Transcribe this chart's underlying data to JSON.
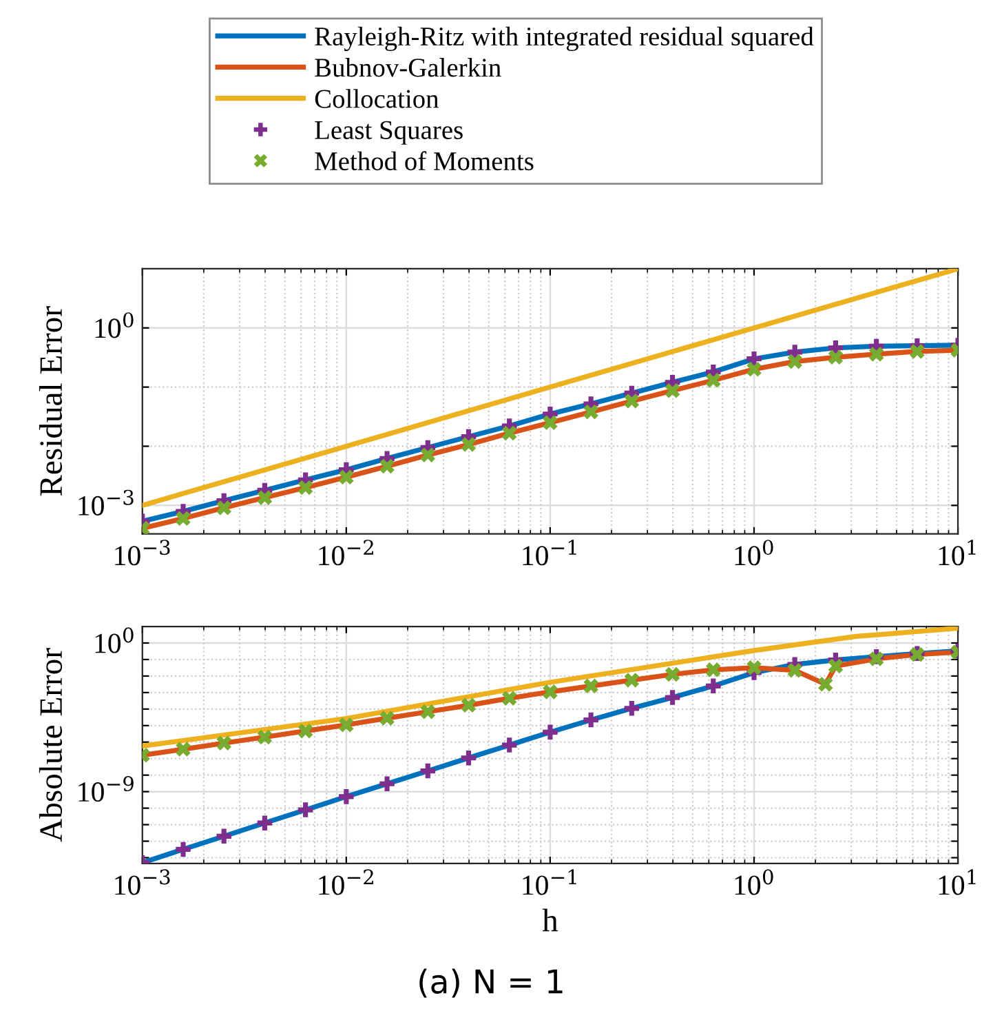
{
  "chart_data": [
    {
      "type": "line",
      "ylabel": "Residual Error",
      "log": "xy",
      "grid": true,
      "legend": "top",
      "xlim": [
        0.001,
        10
      ],
      "xticks": [
        {
          "value": 0.001,
          "label": "10$^{−3}$"
        },
        {
          "value": 0.01,
          "label": "10$^{−2}$"
        },
        {
          "value": 0.1,
          "label": "10$^{−1}$"
        },
        {
          "value": 1,
          "label": "10$^{0}$"
        },
        {
          "value": 10,
          "label": "10$^{1}$"
        }
      ],
      "ylim": [
        0.00033,
        10
      ],
      "yticks": [
        {
          "value": 0.001,
          "label": "10$^{−3}$"
        },
        {
          "value": 0.01,
          "label": null
        },
        {
          "value": 0.1,
          "label": null
        },
        {
          "value": 1,
          "label": "10$^{0}$"
        }
      ],
      "x": [
        0.001,
        0.001585,
        0.002512,
        0.003981,
        0.00631,
        0.01,
        0.01585,
        0.02512,
        0.03981,
        0.0631,
        0.1,
        0.1585,
        0.2512,
        0.3981,
        0.631,
        1,
        1.585,
        2.512,
        3.981,
        6.31,
        10
      ],
      "series": [
        {
          "name": "Rayleigh-Ritz with integrated residual squared",
          "color": "#0072bd",
          "marker": "none",
          "values": [
            0.00054,
            0.00079,
            0.0012,
            0.0018,
            0.0027,
            0.004,
            0.0062,
            0.0095,
            0.0145,
            0.022,
            0.035,
            0.052,
            0.079,
            0.12,
            0.18,
            0.3,
            0.39,
            0.46,
            0.49,
            0.5,
            0.51
          ]
        },
        {
          "name": "Bubnov-Galerkin",
          "color": "#d95319",
          "marker": "none",
          "values": [
            0.00041,
            0.0006,
            0.00091,
            0.00135,
            0.002,
            0.003,
            0.0046,
            0.0071,
            0.0107,
            0.0166,
            0.025,
            0.038,
            0.058,
            0.087,
            0.13,
            0.2,
            0.27,
            0.32,
            0.36,
            0.4,
            0.42
          ]
        },
        {
          "name": "Collocation",
          "color": "#edb120",
          "marker": "none",
          "x": [
            0.001,
            10
          ],
          "values": [
            0.001,
            10
          ]
        },
        {
          "name": "Least Squares",
          "type": "scatter",
          "color": "#7e2f8e",
          "marker": "plus",
          "values": [
            0.00054,
            0.00079,
            0.0012,
            0.0018,
            0.0027,
            0.004,
            0.0062,
            0.0095,
            0.0145,
            0.022,
            0.035,
            0.052,
            0.079,
            0.12,
            0.18,
            0.3,
            0.39,
            0.46,
            0.49,
            0.5,
            0.51
          ]
        },
        {
          "name": "Method of Moments",
          "type": "scatter",
          "color": "#77ac30",
          "marker": "cross",
          "values": [
            0.00041,
            0.0006,
            0.00091,
            0.00135,
            0.002,
            0.003,
            0.0046,
            0.0071,
            0.0107,
            0.0166,
            0.025,
            0.038,
            0.058,
            0.087,
            0.13,
            0.2,
            0.27,
            0.32,
            0.36,
            0.4,
            0.42
          ]
        }
      ]
    },
    {
      "type": "line",
      "ylabel": "Absolute Error",
      "xlabel": "h",
      "log": "xy",
      "grid": true,
      "annotations": [
        "(a) N = 1"
      ],
      "xlim": [
        0.001,
        10
      ],
      "xticks": [
        {
          "value": 0.001,
          "label": "10$^{−3}$"
        },
        {
          "value": 0.01,
          "label": "10$^{−2}$"
        },
        {
          "value": 0.1,
          "label": "10$^{−1}$"
        },
        {
          "value": 1,
          "label": "10$^{0}$"
        },
        {
          "value": 10,
          "label": "10$^{1}$"
        }
      ],
      "ylim": [
        4.5e-14,
        10
      ],
      "yticks": [
        {
          "value": 1e-13,
          "label": null
        },
        {
          "value": 1e-12,
          "label": null
        },
        {
          "value": 1e-11,
          "label": null
        },
        {
          "value": 1e-10,
          "label": null
        },
        {
          "value": 1e-09,
          "label": "10$^{−9}$"
        },
        {
          "value": 1e-08,
          "label": null
        },
        {
          "value": 1e-07,
          "label": null
        },
        {
          "value": 1e-06,
          "label": null
        },
        {
          "value": 1e-05,
          "label": null
        },
        {
          "value": 0.0001,
          "label": null
        },
        {
          "value": 0.001,
          "label": null
        },
        {
          "value": 0.01,
          "label": null
        },
        {
          "value": 0.1,
          "label": null
        },
        {
          "value": 1,
          "label": "10$^{0}$"
        }
      ],
      "x": [
        0.001,
        0.001585,
        0.002512,
        0.003981,
        0.00631,
        0.01,
        0.01585,
        0.02512,
        0.03981,
        0.0631,
        0.1,
        0.1585,
        0.2512,
        0.3981,
        0.631,
        1,
        1.585,
        2.512,
        3.981,
        6.31,
        10
      ],
      "series": [
        {
          "color": "#0072bd",
          "marker": "none",
          "values": [
            5e-14,
            3.2e-13,
            2e-12,
            1.26e-11,
            7.9e-11,
            5e-10,
            3e-09,
            1.8e-08,
            1.1e-07,
            6.6e-07,
            4e-06,
            2.2e-05,
            0.00011,
            0.0005,
            0.0025,
            0.016,
            0.05,
            0.093,
            0.15,
            0.23,
            0.33
          ]
        },
        {
          "color": "#d95319",
          "marker": "none",
          "x": [
            0.001,
            0.001585,
            0.002512,
            0.003981,
            0.00631,
            0.01,
            0.01585,
            0.02512,
            0.03981,
            0.0631,
            0.1,
            0.1585,
            0.2512,
            0.3981,
            0.631,
            1,
            1.585,
            2.24,
            2.512,
            3.981,
            6.31,
            10
          ],
          "values": [
            1.6e-07,
            3.7e-07,
            8.7e-07,
            2e-06,
            4.7e-06,
            1.1e-05,
            2.8e-05,
            6.9e-05,
            0.00017,
            0.00045,
            0.0011,
            0.0025,
            0.0056,
            0.0126,
            0.024,
            0.032,
            0.022,
            0.0032,
            0.04,
            0.11,
            0.2,
            0.28
          ]
        },
        {
          "color": "#edb120",
          "marker": "none",
          "x": [
            0.001,
            0.01,
            0.1,
            1,
            3.162,
            10
          ],
          "values": [
            5.8e-07,
            2.7e-05,
            0.0042,
            0.35,
            2.5,
            7.9
          ]
        },
        {
          "type": "scatter",
          "color": "#7e2f8e",
          "marker": "plus",
          "values": [
            5e-14,
            3.2e-13,
            2e-12,
            1.26e-11,
            7.9e-11,
            5e-10,
            3e-09,
            1.8e-08,
            1.1e-07,
            6.6e-07,
            4e-06,
            2.2e-05,
            0.00011,
            0.0005,
            0.0025,
            0.016,
            0.05,
            0.093,
            0.15,
            0.23,
            0.33
          ]
        },
        {
          "type": "scatter",
          "color": "#77ac30",
          "marker": "cross",
          "x": [
            0.001,
            0.001585,
            0.002512,
            0.003981,
            0.00631,
            0.01,
            0.01585,
            0.02512,
            0.03981,
            0.0631,
            0.1,
            0.1585,
            0.2512,
            0.3981,
            0.631,
            1,
            1.585,
            2.24,
            2.512,
            3.981,
            6.31,
            10
          ],
          "values": [
            1.6e-07,
            3.7e-07,
            8.7e-07,
            2e-06,
            4.7e-06,
            1.1e-05,
            2.8e-05,
            6.9e-05,
            0.00017,
            0.00045,
            0.0011,
            0.0025,
            0.0056,
            0.0126,
            0.024,
            0.032,
            0.022,
            0.0032,
            0.04,
            0.11,
            0.2,
            0.28
          ]
        }
      ]
    }
  ]
}
